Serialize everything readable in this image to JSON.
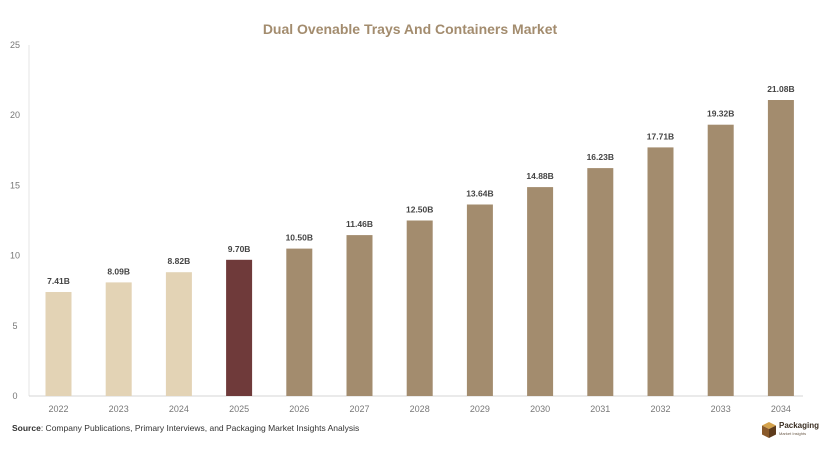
{
  "chart_data": {
    "type": "bar",
    "title": "Dual Ovenable Trays And Containers Market",
    "xlabel": "",
    "ylabel": "",
    "categories": [
      "2022",
      "2023",
      "2024",
      "2025",
      "2026",
      "2027",
      "2028",
      "2029",
      "2030",
      "2031",
      "2032",
      "2033",
      "2034"
    ],
    "values": [
      7.41,
      8.09,
      8.82,
      9.7,
      10.5,
      11.46,
      12.5,
      13.64,
      14.88,
      16.23,
      17.71,
      19.32,
      21.08
    ],
    "data_labels": [
      "7.41B",
      "8.09B",
      "8.82B",
      "9.70B",
      "10.50B",
      "11.46B",
      "12.50B",
      "13.64B",
      "14.88B",
      "16.23B",
      "17.71B",
      "19.32B",
      "21.08B"
    ],
    "ylim": [
      0,
      25
    ],
    "yticks": [
      0,
      5,
      10,
      15,
      20,
      25
    ],
    "grid": false,
    "legend": "none",
    "colors": {
      "historical": "#e3d3b5",
      "base_year": "#6f3a3a",
      "forecast": "#a38c6e",
      "title": "#a38c6e"
    },
    "color_by_category": [
      "historical",
      "historical",
      "historical",
      "base_year",
      "forecast",
      "forecast",
      "forecast",
      "forecast",
      "forecast",
      "forecast",
      "forecast",
      "forecast",
      "forecast"
    ]
  },
  "footer": {
    "source_label": "Source",
    "source_text": ": Company Publications, Primary Interviews, and Packaging Market Insights Analysis"
  },
  "logo": {
    "name": "Packaging",
    "tagline": "Market Insights"
  }
}
